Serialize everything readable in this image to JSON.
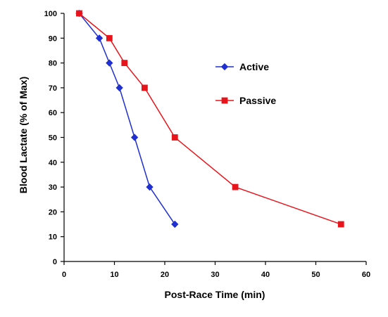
{
  "chart_data": {
    "type": "line",
    "title": "",
    "xlabel": "Post-Race Time (min)",
    "ylabel": "Blood Lactate (% of Max)",
    "xlim": [
      0,
      60
    ],
    "ylim": [
      0,
      100
    ],
    "x_ticks": [
      0,
      10,
      20,
      30,
      40,
      50,
      60
    ],
    "y_ticks": [
      0,
      10,
      20,
      30,
      40,
      50,
      60,
      70,
      80,
      90,
      100
    ],
    "grid": false,
    "legend_position": "right",
    "series": [
      {
        "name": "Active",
        "color": "#1f2fd1",
        "marker": "diamond",
        "x": [
          3,
          7,
          9,
          11,
          14,
          17,
          22
        ],
        "y": [
          100,
          90,
          80,
          70,
          50,
          30,
          15
        ]
      },
      {
        "name": "Passive",
        "color": "#e8141b",
        "marker": "square",
        "x": [
          3,
          9,
          12,
          16,
          22,
          34,
          55
        ],
        "y": [
          100,
          90,
          80,
          70,
          50,
          30,
          15
        ]
      }
    ]
  }
}
